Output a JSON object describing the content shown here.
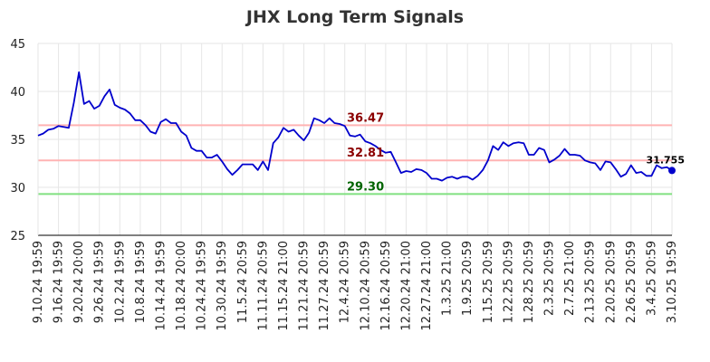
{
  "chart_data": {
    "type": "line",
    "title": "JHX Long Term Signals",
    "ylim": [
      25,
      45
    ],
    "yticks": [
      "25",
      "30",
      "35",
      "40",
      "45"
    ],
    "grid": true,
    "x_tick_labels": [
      "9.10.24 19:59",
      "9.16.24 19:59",
      "9.20.24 20:00",
      "9.26.24 19:59",
      "10.2.24 19:59",
      "10.8.24 19:59",
      "10.14.24 19:59",
      "10.18.24 20:00",
      "10.24.24 19:59",
      "10.30.24 19:59",
      "11.5.24 20:59",
      "11.11.24 20:59",
      "11.15.24 21:00",
      "11.21.24 20:59",
      "11.27.24 20:59",
      "12.4.24 20:59",
      "12.10.24 20:59",
      "12.16.24 20:59",
      "12.20.24 21:00",
      "12.27.24 21:00",
      "1.3.25 21:00",
      "1.9.25 20:59",
      "1.15.25 20:59",
      "1.22.25 20:59",
      "1.28.25 20:59",
      "2.3.25 20:59",
      "2.7.25 21:00",
      "2.13.25 20:59",
      "2.20.25 20:59",
      "2.26.25 20:59",
      "3.4.25 20:59",
      "3.10.25 19:59"
    ],
    "series": [
      {
        "color": "#0000cc",
        "values": [
          35.4,
          35.6,
          36.0,
          36.1,
          36.4,
          36.3,
          36.2,
          38.8,
          42.0,
          38.7,
          39.0,
          38.2,
          38.5,
          39.5,
          40.2,
          38.6,
          38.3,
          38.1,
          37.7,
          37.0,
          37.0,
          36.5,
          35.8,
          35.6,
          36.8,
          37.1,
          36.7,
          36.7,
          35.8,
          35.4,
          34.1,
          33.8,
          33.8,
          33.1,
          33.1,
          33.4,
          32.7,
          31.9,
          31.3,
          31.8,
          32.4,
          32.4,
          32.4,
          31.8,
          32.7,
          31.8,
          34.6,
          35.2,
          36.2,
          35.8,
          36.0,
          35.4,
          34.9,
          35.7,
          37.2,
          37.0,
          36.7,
          37.2,
          36.7,
          36.6,
          36.4,
          35.4,
          35.3,
          35.5,
          34.8,
          34.6,
          34.3,
          33.9,
          33.6,
          33.7,
          32.6,
          31.5,
          31.7,
          31.6,
          31.9,
          31.8,
          31.5,
          30.9,
          30.9,
          30.7,
          31.0,
          31.1,
          30.9,
          31.1,
          31.1,
          30.8,
          31.2,
          31.8,
          32.8,
          34.3,
          33.9,
          34.7,
          34.3,
          34.6,
          34.7,
          34.6,
          33.4,
          33.4,
          34.1,
          33.9,
          32.6,
          32.9,
          33.3,
          34.0,
          33.4,
          33.4,
          33.3,
          32.8,
          32.6,
          32.5,
          31.8,
          32.7,
          32.6,
          31.9,
          31.1,
          31.4,
          32.3,
          31.5,
          31.6,
          31.2,
          31.2,
          32.3,
          32.0,
          32.1,
          31.755
        ]
      }
    ],
    "last_value_label": "31.755",
    "hlines": [
      {
        "value": 36.47,
        "label": "36.47",
        "line_color": "#ffb3b3",
        "label_color": "#8b0000"
      },
      {
        "value": 32.81,
        "label": "32.81",
        "line_color": "#ffb3b3",
        "label_color": "#8b0000"
      },
      {
        "value": 29.3,
        "label": "29.30",
        "line_color": "#80e080",
        "label_color": "#006400"
      }
    ]
  }
}
